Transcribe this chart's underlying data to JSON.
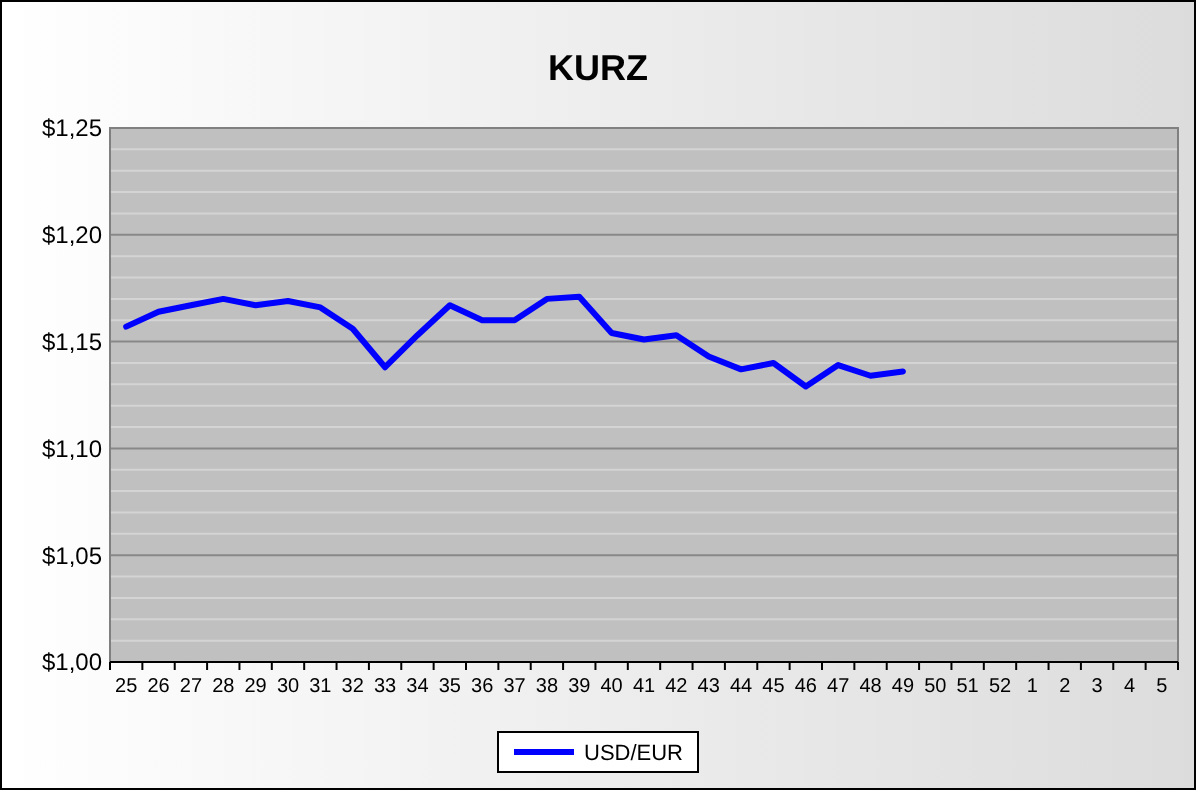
{
  "chart_data": {
    "type": "line",
    "title": "KURZ",
    "categories": [
      "25",
      "26",
      "27",
      "28",
      "29",
      "30",
      "31",
      "32",
      "33",
      "34",
      "35",
      "36",
      "37",
      "38",
      "39",
      "40",
      "41",
      "42",
      "43",
      "44",
      "45",
      "46",
      "47",
      "48",
      "49",
      "50",
      "51",
      "52",
      "1",
      "2",
      "3",
      "4",
      "5"
    ],
    "series": [
      {
        "name": "USD/EUR",
        "color": "#0000ff",
        "values": [
          1.157,
          1.164,
          1.167,
          1.17,
          1.167,
          1.169,
          1.166,
          1.156,
          1.138,
          1.153,
          1.167,
          1.16,
          1.16,
          1.17,
          1.171,
          1.154,
          1.151,
          1.153,
          1.143,
          1.137,
          1.14,
          1.129,
          1.139,
          1.134,
          1.136,
          null,
          null,
          null,
          null,
          null,
          null,
          null,
          null
        ]
      }
    ],
    "ylim": [
      1.0,
      1.25
    ],
    "yticks": [
      {
        "value": 1.0,
        "label": "$1,00"
      },
      {
        "value": 1.01,
        "label": null
      },
      {
        "value": 1.02,
        "label": null
      },
      {
        "value": 1.03,
        "label": null
      },
      {
        "value": 1.04,
        "label": null
      },
      {
        "value": 1.05,
        "label": "$1,05"
      },
      {
        "value": 1.06,
        "label": null
      },
      {
        "value": 1.07,
        "label": null
      },
      {
        "value": 1.08,
        "label": null
      },
      {
        "value": 1.09,
        "label": null
      },
      {
        "value": 1.1,
        "label": "$1,10"
      },
      {
        "value": 1.11,
        "label": null
      },
      {
        "value": 1.12,
        "label": null
      },
      {
        "value": 1.13,
        "label": null
      },
      {
        "value": 1.14,
        "label": null
      },
      {
        "value": 1.15,
        "label": "$1,15"
      },
      {
        "value": 1.16,
        "label": null
      },
      {
        "value": 1.17,
        "label": null
      },
      {
        "value": 1.18,
        "label": null
      },
      {
        "value": 1.19,
        "label": null
      },
      {
        "value": 1.2,
        "label": "$1,20"
      },
      {
        "value": 1.21,
        "label": null
      },
      {
        "value": 1.22,
        "label": null
      },
      {
        "value": 1.23,
        "label": null
      },
      {
        "value": 1.24,
        "label": null
      },
      {
        "value": 1.25,
        "label": "$1,25"
      }
    ],
    "grid": "y",
    "legend": "bottom",
    "marker": "none",
    "line_style": "solid"
  }
}
